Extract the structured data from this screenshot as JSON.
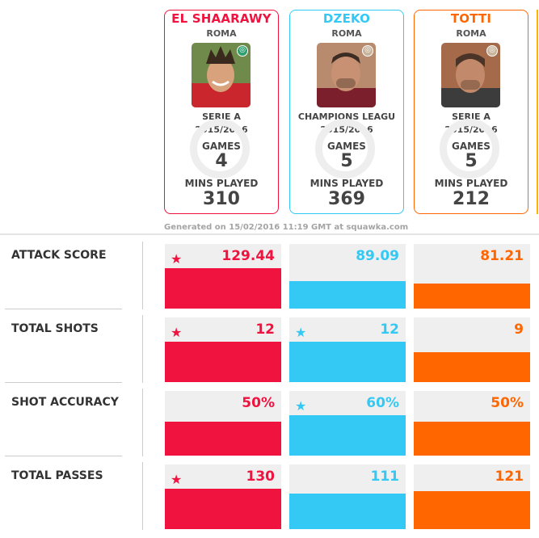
{
  "colors": {
    "el_shaarawy": "#f0133f",
    "dzeko": "#33c9f4",
    "totti": "#ff6600"
  },
  "players": [
    {
      "name": "EL SHAARAWY",
      "club": "ROMA",
      "competition": "SERIE A",
      "season": "2015/2016",
      "games_label": "GAMES",
      "games": "4",
      "mins_label": "MINS PLAYED",
      "mins": "310",
      "badge_icon": "roma-badge-icon"
    },
    {
      "name": "DZEKO",
      "club": "ROMA",
      "competition": "CHAMPIONS LEAGU",
      "season": "2015/2016",
      "games_label": "GAMES",
      "games": "5",
      "mins_label": "MINS PLAYED",
      "mins": "369",
      "badge_icon": "roma-badge-icon"
    },
    {
      "name": "TOTTI",
      "club": "ROMA",
      "competition": "SERIE A",
      "season": "2015/2016",
      "games_label": "GAMES",
      "games": "5",
      "mins_label": "MINS PLAYED",
      "mins": "212",
      "badge_icon": "roma-badge-icon"
    }
  ],
  "generated_text": "Generated on 15/02/2016 11:19 GMT at squawka.com",
  "stats": [
    {
      "label": "ATTACK SCORE",
      "values": [
        "129.44",
        "89.09",
        "81.21"
      ],
      "stars": [
        true,
        false,
        false
      ]
    },
    {
      "label": "TOTAL SHOTS",
      "values": [
        "12",
        "12",
        "9"
      ],
      "stars": [
        true,
        true,
        false
      ]
    },
    {
      "label": "SHOT ACCURACY",
      "values": [
        "50%",
        "60%",
        "50%"
      ],
      "stars": [
        false,
        true,
        false
      ]
    },
    {
      "label": "TOTAL PASSES",
      "values": [
        "130",
        "111",
        "121"
      ],
      "stars": [
        true,
        false,
        false
      ]
    }
  ],
  "star_icon": "star-icon"
}
